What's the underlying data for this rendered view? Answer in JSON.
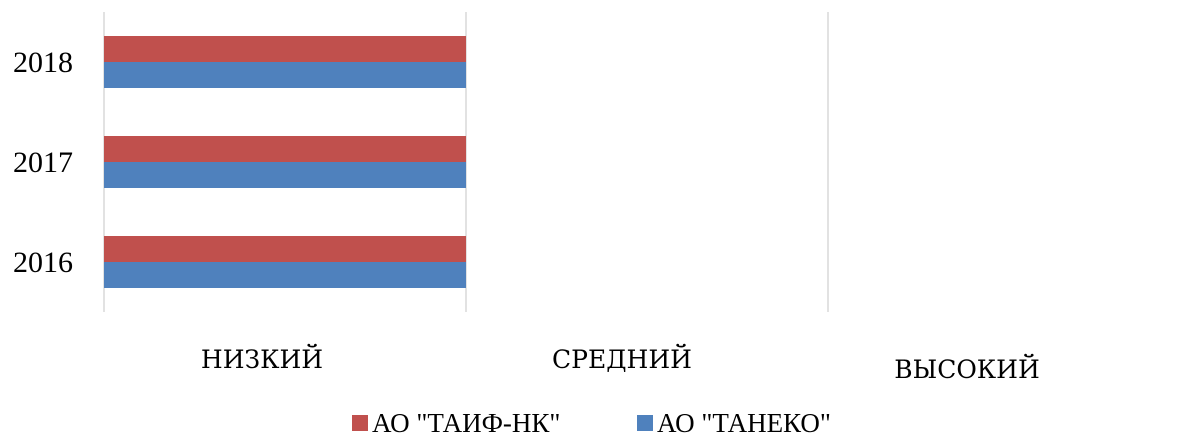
{
  "chart_data": {
    "type": "bar",
    "orientation": "horizontal",
    "categories": [
      "2016",
      "2017",
      "2018"
    ],
    "series": [
      {
        "name": "АО \"ТАНЕКО\"",
        "color": "#4f81bd",
        "values": [
          1,
          1,
          1
        ]
      },
      {
        "name": "АО \"ТАИФ-НК\"",
        "color": "#c0504d",
        "values": [
          1,
          1,
          1
        ]
      }
    ],
    "x_levels": [
      "НИЗКИЙ",
      "СРЕДНИЙ",
      "ВЫСОКИЙ"
    ],
    "xlim": [
      0,
      2
    ],
    "grid": true,
    "legend_position": "bottom",
    "legend_order": [
      "АО \"ТАИФ-НК\"",
      "АО \"ТАНЕКО\""
    ],
    "title": "",
    "xlabel": "",
    "ylabel": ""
  }
}
